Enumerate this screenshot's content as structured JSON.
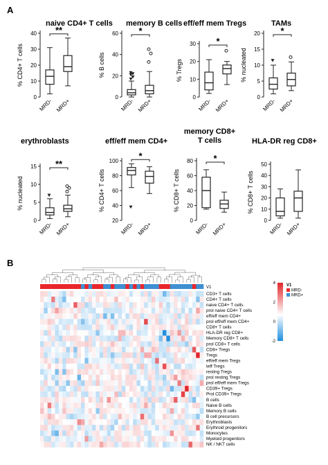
{
  "panel_a_label": "A",
  "panel_b_label": "B",
  "chart_data": [
    {
      "type": "box",
      "title": "naive CD4+ T cells",
      "ylabel": "% CD4+ T cells",
      "categories": [
        "MRD-",
        "MRD+"
      ],
      "ylim": [
        0,
        40
      ],
      "yticks": [
        0,
        10,
        20,
        30,
        40
      ],
      "significance": "**",
      "series": [
        {
          "name": "MRD-",
          "min": 2,
          "q1": 8,
          "median": 13,
          "q3": 17,
          "max": 31,
          "outliers": []
        },
        {
          "name": "MRD+",
          "min": 7,
          "q1": 16,
          "median": 19,
          "q3": 26,
          "max": 37,
          "outliers": []
        }
      ]
    },
    {
      "type": "box",
      "title": "memory B cells",
      "ylabel": "% B cells",
      "categories": [
        "MRD-",
        "MRD+"
      ],
      "ylim": [
        0,
        60
      ],
      "yticks": [
        0,
        20,
        40,
        60
      ],
      "significance": "*",
      "series": [
        {
          "name": "MRD-",
          "min": 0,
          "q1": 2,
          "median": 4,
          "q3": 7,
          "max": 15,
          "outliers": [
            17,
            19,
            21,
            22,
            23
          ]
        },
        {
          "name": "MRD+",
          "min": 0,
          "q1": 3,
          "median": 6,
          "q3": 11,
          "max": 24,
          "outliers": [
            33,
            41,
            45
          ]
        }
      ]
    },
    {
      "type": "box",
      "title": "eff/eff mem Tregs",
      "ylabel": "% Tregs",
      "categories": [
        "MRD-",
        "MRD+"
      ],
      "ylim": [
        0,
        30
      ],
      "yticks": [
        0,
        10,
        20,
        30
      ],
      "significance": "*",
      "series": [
        {
          "name": "MRD-",
          "min": 2,
          "q1": 4,
          "median": 8,
          "q3": 14,
          "max": 21,
          "outliers": []
        },
        {
          "name": "MRD+",
          "min": 7,
          "q1": 13,
          "median": 16,
          "q3": 18,
          "max": 20,
          "outliers": [
            26
          ]
        }
      ]
    },
    {
      "type": "box",
      "title": "TAMs",
      "ylabel": "% nucleated",
      "categories": [
        "MRD-",
        "MRD+"
      ],
      "ylim": [
        0,
        20
      ],
      "yticks": [
        0,
        5,
        10,
        15,
        20
      ],
      "significance": "*",
      "series": [
        {
          "name": "MRD-",
          "min": 1,
          "q1": 2.5,
          "median": 4,
          "q3": 6,
          "max": 10,
          "outliers": [
            11.5
          ]
        },
        {
          "name": "MRD+",
          "min": 2,
          "q1": 3.5,
          "median": 5.5,
          "q3": 7.5,
          "max": 11,
          "outliers": [
            12.5
          ]
        }
      ]
    },
    {
      "type": "box",
      "title": "erythroblasts",
      "ylabel": "% nucleated",
      "categories": [
        "MRD-",
        "MRD+"
      ],
      "ylim": [
        0,
        15
      ],
      "yticks": [
        0,
        5,
        10,
        15
      ],
      "significance": "**",
      "series": [
        {
          "name": "MRD-",
          "min": 0.5,
          "q1": 1.5,
          "median": 2.2,
          "q3": 3.5,
          "max": 6,
          "outliers": [
            7
          ]
        },
        {
          "name": "MRD+",
          "min": 1,
          "q1": 2.5,
          "median": 3.2,
          "q3": 4.2,
          "max": 7,
          "outliers": [
            8,
            9,
            9.5
          ]
        }
      ]
    },
    {
      "type": "box",
      "title": "eff/eff mem CD4+",
      "ylabel": "% CD4+ T cells",
      "categories": [
        "MRD-",
        "MRD+"
      ],
      "ylim": [
        20,
        100
      ],
      "yticks": [
        20,
        40,
        60,
        80,
        100
      ],
      "significance": "*",
      "series": [
        {
          "name": "MRD-",
          "min": 64,
          "q1": 81,
          "median": 87,
          "q3": 91,
          "max": 96,
          "outliers": [
            38
          ]
        },
        {
          "name": "MRD+",
          "min": 56,
          "q1": 70,
          "median": 79,
          "q3": 86,
          "max": 92,
          "outliers": []
        }
      ]
    },
    {
      "type": "box",
      "title": "memory CD8+ T cells",
      "ylabel": "% CD8+ T cells",
      "categories": [
        "MRD-",
        "MRD+"
      ],
      "ylim": [
        0,
        80
      ],
      "yticks": [
        0,
        20,
        40,
        60,
        80
      ],
      "significance": "*",
      "series": [
        {
          "name": "MRD-",
          "min": 15,
          "q1": 17,
          "median": 40,
          "q3": 58,
          "max": 68,
          "outliers": []
        },
        {
          "name": "MRD+",
          "min": 11,
          "q1": 16,
          "median": 22,
          "q3": 27,
          "max": 38,
          "outliers": []
        }
      ]
    },
    {
      "type": "box",
      "title": "HLA-DR reg CD8+",
      "ylabel": "% CD8+ T cells",
      "categories": [
        "MRD-",
        "MRD+"
      ],
      "ylim": [
        0,
        50
      ],
      "yticks": [
        0,
        10,
        20,
        30,
        40,
        50
      ],
      "significance": "",
      "series": [
        {
          "name": "MRD-",
          "min": 2,
          "q1": 4,
          "median": 8,
          "q3": 20,
          "max": 28,
          "outliers": []
        },
        {
          "name": "MRD+",
          "min": 2,
          "q1": 8,
          "median": 20,
          "q3": 26,
          "max": 45,
          "outliers": []
        }
      ]
    },
    {
      "type": "heatmap",
      "group_label": "V1",
      "groups": [
        "MRD-",
        "MRD+"
      ],
      "group_colors": {
        "MRD-": "#e8262b",
        "MRD+": "#3f8fd2"
      },
      "column_groups": [
        "MRD-",
        "MRD-",
        "MRD-",
        "MRD-",
        "MRD-",
        "MRD-",
        "MRD-",
        "MRD-",
        "MRD-",
        "MRD-",
        "MRD-",
        "MRD+",
        "MRD-",
        "MRD+",
        "MRD-",
        "MRD-",
        "MRD-",
        "MRD+",
        "MRD+",
        "MRD-",
        "MRD+",
        "MRD+",
        "MRD+",
        "MRD-",
        "MRD+",
        "MRD-",
        "MRD+",
        "MRD-",
        "MRD+",
        "MRD+",
        "MRD+",
        "MRD+",
        "MRD-",
        "MRD-",
        "MRD-",
        "MRD+",
        "MRD+",
        "MRD+",
        "MRD+",
        "MRD+",
        "MRD+",
        "MRD-",
        "MRD+",
        "MRD+"
      ],
      "scale": {
        "min": -2,
        "max": 4,
        "ticks": [
          4,
          2,
          0,
          -2
        ],
        "low_color": "#1f8fe0",
        "mid_color": "#ffffff",
        "high_color": "#e0262b"
      },
      "rows": [
        "CD3+ T cells",
        "CD4+ T cells",
        "naive CD4+ T cells",
        "prol naive CD4+ T cells",
        "eff/eff mem CD4+",
        "prol eff/eff mem CD4+",
        "CD8+ T cells",
        "HLA-DR reg CD8+",
        "Memory CD8+ T cells",
        "prol CD8+ T cells",
        "CD8+ Tregs",
        "Tregs",
        "eff/eff mem Tregs",
        "teff Tregs",
        "resting Tregs",
        "prol resting Tregs",
        "prol eff/eff mem Tregs",
        "CD39+ Tregs",
        "Prol CD39+ Tregs",
        "B cells",
        "Naive B cells",
        "Memory B cells",
        "B cell precursors",
        "Erythroblasts",
        "Erythroid progenitors",
        "Monocytes",
        "Myeloid progenitors",
        "NK / NKT cells"
      ],
      "hot_cells": [
        [
          1,
          3,
          1.8
        ],
        [
          2,
          9,
          2.2
        ],
        [
          3,
          4,
          1.3
        ],
        [
          5,
          28,
          2.5
        ],
        [
          7,
          33,
          -2
        ],
        [
          7,
          37,
          1.4
        ],
        [
          8,
          34,
          -2
        ],
        [
          10,
          41,
          2.3
        ],
        [
          11,
          42,
          3
        ],
        [
          12,
          31,
          2
        ],
        [
          13,
          33,
          2.4
        ],
        [
          16,
          37,
          1.8
        ],
        [
          17,
          39,
          3.2
        ],
        [
          18,
          38,
          2.6
        ],
        [
          19,
          36,
          2.2
        ],
        [
          20,
          2,
          1.8
        ],
        [
          22,
          27,
          2
        ],
        [
          23,
          10,
          1.6
        ],
        [
          24,
          42,
          1.9
        ],
        [
          25,
          35,
          1.5
        ],
        [
          26,
          12,
          1.4
        ],
        [
          27,
          40,
          2.1
        ]
      ]
    }
  ]
}
